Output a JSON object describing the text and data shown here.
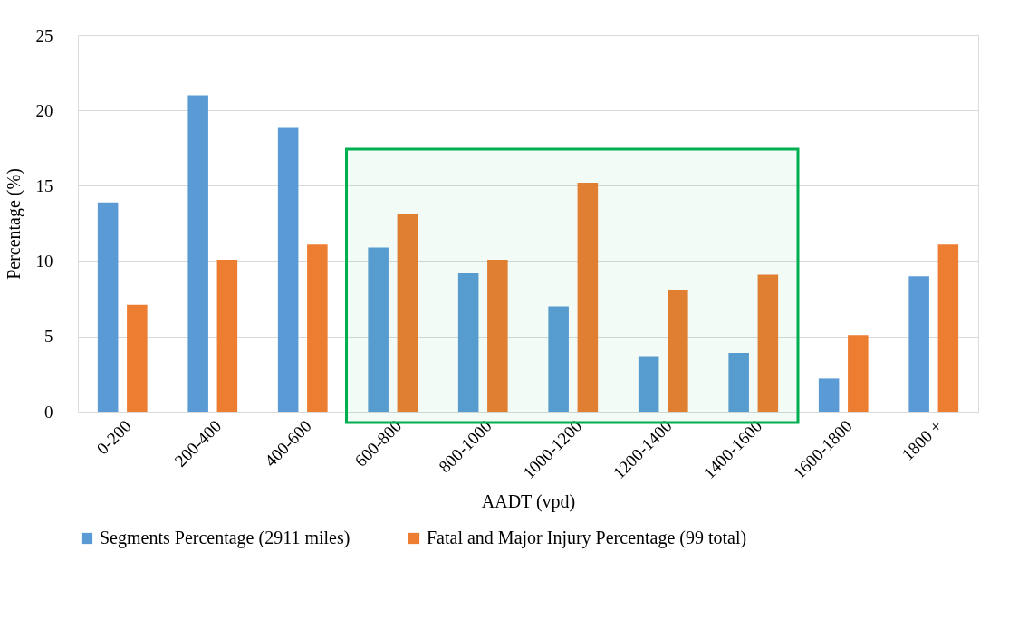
{
  "chart_data": {
    "type": "bar",
    "xlabel": "AADT (vpd)",
    "ylabel": "Percentage (%)",
    "categories": [
      "0-200",
      "200-400",
      "400-600",
      "600-800",
      "800-1000",
      "1000-1200",
      "1200-1400",
      "1400-1600",
      "1600-1800",
      "1800 +"
    ],
    "series": [
      {
        "name": "Segments Percentage (2911 miles)",
        "color": "#5b9bd5",
        "values": [
          13.9,
          21.0,
          18.9,
          10.9,
          9.2,
          7.0,
          3.7,
          3.9,
          2.2,
          9.0
        ]
      },
      {
        "name": "Fatal and Major Injury Percentage (99 total)",
        "color": "#ed7d31",
        "values": [
          7.1,
          10.1,
          11.1,
          13.1,
          10.1,
          15.2,
          8.1,
          9.1,
          5.1,
          11.1
        ]
      }
    ],
    "ylim": [
      0,
      25
    ],
    "yticks": [
      0,
      5,
      10,
      15,
      20,
      25
    ],
    "grid": "y",
    "legend": "bottom",
    "bands": [
      {
        "axis": "x",
        "from": "600-800",
        "to": "1400-1600",
        "color": "#00b050"
      }
    ]
  }
}
